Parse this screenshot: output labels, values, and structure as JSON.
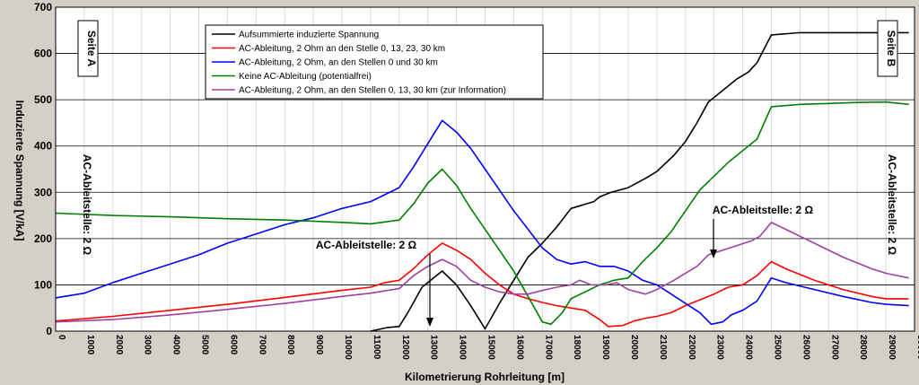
{
  "chart_data": {
    "type": "line",
    "title": "",
    "xlabel": "Kilometrierung Rohrleitung [m]",
    "ylabel": "Induzierte Spannung [V/kA]",
    "xlim": [
      0,
      30000
    ],
    "ylim": [
      0,
      700
    ],
    "xticks": [
      0,
      1000,
      2000,
      3000,
      4000,
      5000,
      6000,
      7000,
      8000,
      9000,
      10000,
      11000,
      12000,
      13000,
      14000,
      15000,
      16000,
      17000,
      18000,
      19000,
      20000,
      21000,
      22000,
      23000,
      24000,
      25000,
      26000,
      27000,
      28000,
      29000,
      30000
    ],
    "yticks": [
      0,
      100,
      200,
      300,
      400,
      500,
      600,
      700
    ],
    "grid": true,
    "legend_position": "top-center",
    "series": [
      {
        "name": "Aufsummierte induzierte Spannung",
        "color": "#000000",
        "points": [
          [
            11000,
            0
          ],
          [
            11600,
            8
          ],
          [
            12000,
            10
          ],
          [
            12300,
            40
          ],
          [
            12800,
            95
          ],
          [
            13500,
            130
          ],
          [
            14000,
            100
          ],
          [
            14500,
            55
          ],
          [
            15000,
            5
          ],
          [
            15500,
            60
          ],
          [
            16000,
            110
          ],
          [
            16500,
            160
          ],
          [
            17000,
            190
          ],
          [
            17500,
            225
          ],
          [
            18000,
            265
          ],
          [
            18800,
            280
          ],
          [
            19000,
            290
          ],
          [
            19400,
            300
          ],
          [
            20000,
            310
          ],
          [
            20600,
            330
          ],
          [
            21000,
            345
          ],
          [
            21600,
            380
          ],
          [
            22000,
            410
          ],
          [
            22400,
            450
          ],
          [
            22800,
            495
          ],
          [
            23300,
            520
          ],
          [
            23800,
            545
          ],
          [
            24200,
            560
          ],
          [
            24500,
            580
          ],
          [
            25000,
            640
          ],
          [
            26000,
            645
          ],
          [
            28000,
            645
          ],
          [
            29000,
            645
          ],
          [
            29800,
            645
          ]
        ]
      },
      {
        "name": "AC-Ableitung, 2 Ohm an den Stelle 0, 13, 23, 30 km",
        "color": "#ff0000",
        "points": [
          [
            0,
            22
          ],
          [
            2000,
            32
          ],
          [
            4000,
            45
          ],
          [
            6000,
            58
          ],
          [
            8000,
            73
          ],
          [
            10000,
            88
          ],
          [
            11000,
            95
          ],
          [
            11500,
            105
          ],
          [
            12000,
            110
          ],
          [
            12500,
            135
          ],
          [
            13000,
            165
          ],
          [
            13500,
            190
          ],
          [
            14000,
            175
          ],
          [
            14500,
            155
          ],
          [
            15000,
            125
          ],
          [
            15500,
            100
          ],
          [
            16000,
            80
          ],
          [
            16500,
            70
          ],
          [
            17000,
            62
          ],
          [
            17500,
            55
          ],
          [
            18000,
            50
          ],
          [
            18500,
            45
          ],
          [
            19000,
            25
          ],
          [
            19300,
            10
          ],
          [
            19800,
            12
          ],
          [
            20200,
            22
          ],
          [
            20600,
            28
          ],
          [
            21000,
            32
          ],
          [
            21500,
            40
          ],
          [
            22000,
            55
          ],
          [
            22600,
            70
          ],
          [
            23000,
            80
          ],
          [
            23500,
            95
          ],
          [
            24000,
            100
          ],
          [
            24500,
            120
          ],
          [
            25000,
            150
          ],
          [
            25500,
            135
          ],
          [
            26500,
            110
          ],
          [
            27500,
            90
          ],
          [
            28500,
            75
          ],
          [
            29000,
            70
          ],
          [
            29800,
            70
          ]
        ]
      },
      {
        "name": "AC-Ableitung, 2 Ohm, an den Stellen 0 und 30 km",
        "color": "#0000ff",
        "points": [
          [
            0,
            72
          ],
          [
            1000,
            82
          ],
          [
            2000,
            105
          ],
          [
            3000,
            125
          ],
          [
            4000,
            145
          ],
          [
            5000,
            165
          ],
          [
            6000,
            190
          ],
          [
            7000,
            210
          ],
          [
            8000,
            230
          ],
          [
            9000,
            245
          ],
          [
            10000,
            265
          ],
          [
            11000,
            280
          ],
          [
            11500,
            295
          ],
          [
            12000,
            310
          ],
          [
            12500,
            355
          ],
          [
            13000,
            405
          ],
          [
            13500,
            455
          ],
          [
            14000,
            430
          ],
          [
            14500,
            395
          ],
          [
            15000,
            350
          ],
          [
            15500,
            305
          ],
          [
            16000,
            260
          ],
          [
            16500,
            220
          ],
          [
            17000,
            180
          ],
          [
            17500,
            155
          ],
          [
            18000,
            145
          ],
          [
            18500,
            150
          ],
          [
            19000,
            140
          ],
          [
            19500,
            140
          ],
          [
            20000,
            130
          ],
          [
            20500,
            110
          ],
          [
            21000,
            100
          ],
          [
            21500,
            80
          ],
          [
            22000,
            60
          ],
          [
            22500,
            40
          ],
          [
            22900,
            15
          ],
          [
            23300,
            20
          ],
          [
            23600,
            35
          ],
          [
            24000,
            45
          ],
          [
            24500,
            65
          ],
          [
            25000,
            115
          ],
          [
            25500,
            105
          ],
          [
            26500,
            90
          ],
          [
            27500,
            75
          ],
          [
            28500,
            62
          ],
          [
            29000,
            58
          ],
          [
            29800,
            55
          ]
        ]
      },
      {
        "name": "Keine AC-Ableitung (potentialfrei)",
        "color": "#008000",
        "points": [
          [
            0,
            255
          ],
          [
            2000,
            250
          ],
          [
            4000,
            247
          ],
          [
            6000,
            243
          ],
          [
            8000,
            240
          ],
          [
            10000,
            235
          ],
          [
            11000,
            232
          ],
          [
            11500,
            236
          ],
          [
            12000,
            240
          ],
          [
            12500,
            275
          ],
          [
            13000,
            320
          ],
          [
            13500,
            350
          ],
          [
            14000,
            315
          ],
          [
            14500,
            265
          ],
          [
            15000,
            220
          ],
          [
            15500,
            175
          ],
          [
            16000,
            130
          ],
          [
            16500,
            75
          ],
          [
            17000,
            20
          ],
          [
            17300,
            15
          ],
          [
            17700,
            40
          ],
          [
            18000,
            70
          ],
          [
            18500,
            85
          ],
          [
            19000,
            100
          ],
          [
            19500,
            110
          ],
          [
            20000,
            115
          ],
          [
            20500,
            150
          ],
          [
            21000,
            180
          ],
          [
            21500,
            215
          ],
          [
            22000,
            260
          ],
          [
            22500,
            305
          ],
          [
            23000,
            335
          ],
          [
            23500,
            365
          ],
          [
            24000,
            390
          ],
          [
            24500,
            415
          ],
          [
            25000,
            485
          ],
          [
            26000,
            490
          ],
          [
            27000,
            492
          ],
          [
            28000,
            494
          ],
          [
            29000,
            495
          ],
          [
            29500,
            492
          ],
          [
            29800,
            490
          ]
        ]
      },
      {
        "name": "AC-Ableitung, 2 Ohm, an den Stellen 0, 13, 30 km (zur Information)",
        "color": "#a040a0",
        "points": [
          [
            0,
            20
          ],
          [
            2000,
            25
          ],
          [
            4000,
            35
          ],
          [
            6000,
            47
          ],
          [
            8000,
            60
          ],
          [
            10000,
            75
          ],
          [
            11000,
            82
          ],
          [
            11500,
            87
          ],
          [
            12000,
            92
          ],
          [
            12500,
            120
          ],
          [
            13000,
            140
          ],
          [
            13500,
            155
          ],
          [
            14000,
            140
          ],
          [
            14500,
            110
          ],
          [
            15000,
            95
          ],
          [
            15500,
            85
          ],
          [
            16000,
            80
          ],
          [
            16500,
            80
          ],
          [
            17000,
            88
          ],
          [
            17500,
            95
          ],
          [
            18000,
            100
          ],
          [
            18300,
            110
          ],
          [
            18700,
            100
          ],
          [
            19200,
            100
          ],
          [
            19600,
            105
          ],
          [
            20000,
            90
          ],
          [
            20600,
            80
          ],
          [
            21000,
            90
          ],
          [
            21600,
            110
          ],
          [
            22000,
            125
          ],
          [
            22400,
            140
          ],
          [
            22800,
            165
          ],
          [
            23300,
            175
          ],
          [
            23800,
            185
          ],
          [
            24300,
            195
          ],
          [
            24600,
            205
          ],
          [
            25000,
            235
          ],
          [
            25500,
            220
          ],
          [
            26500,
            190
          ],
          [
            27500,
            160
          ],
          [
            28500,
            135
          ],
          [
            29000,
            125
          ],
          [
            29800,
            115
          ]
        ]
      }
    ],
    "annotations": {
      "seite_a": "Seite A",
      "seite_b": "Seite B",
      "ableit_left": "AC-Ableitstelle: 2 Ω",
      "ableit_right": "AC-Ableitstelle: 2 Ω",
      "ableit_13km": "AC-Ableitstelle: 2 Ω",
      "ableit_23km": "AC-Ableitstelle: 2 Ω"
    }
  }
}
